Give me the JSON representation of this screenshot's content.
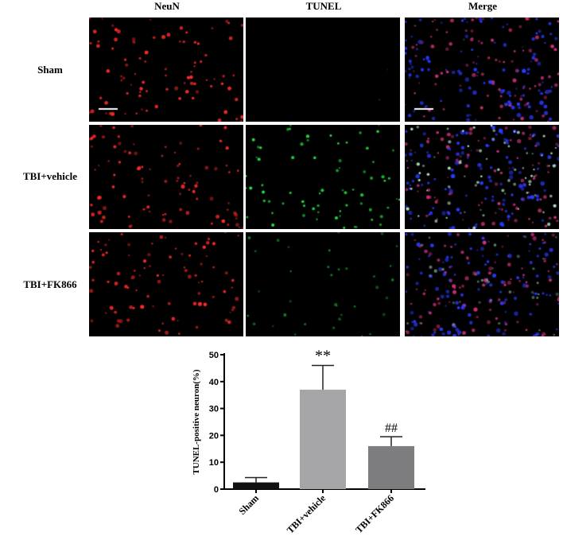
{
  "columns": [
    "NeuN",
    "TUNEL",
    "Merge"
  ],
  "rows": [
    "Sham",
    "TBI+vehicle",
    "TBI+FK866"
  ],
  "colors": {
    "neun": "#ff2a2a",
    "tunel": "#2aff4a",
    "dapi": "#2a3aff"
  },
  "chart_data": {
    "type": "bar",
    "categories": [
      "Sham",
      "TBI+vehicle",
      "TBI+FK866"
    ],
    "values": [
      2.5,
      37,
      16
    ],
    "errors": [
      1.8,
      9,
      3.5
    ],
    "bar_colors": [
      "#111111",
      "#a6a6a8",
      "#7d7d7f"
    ],
    "annotations": [
      "",
      "**",
      "##"
    ],
    "ylabel": "TUNEL-positive neuron(%)",
    "ylim": [
      0,
      50
    ],
    "yticks": [
      0,
      10,
      20,
      30,
      40,
      50
    ],
    "grid": false
  }
}
